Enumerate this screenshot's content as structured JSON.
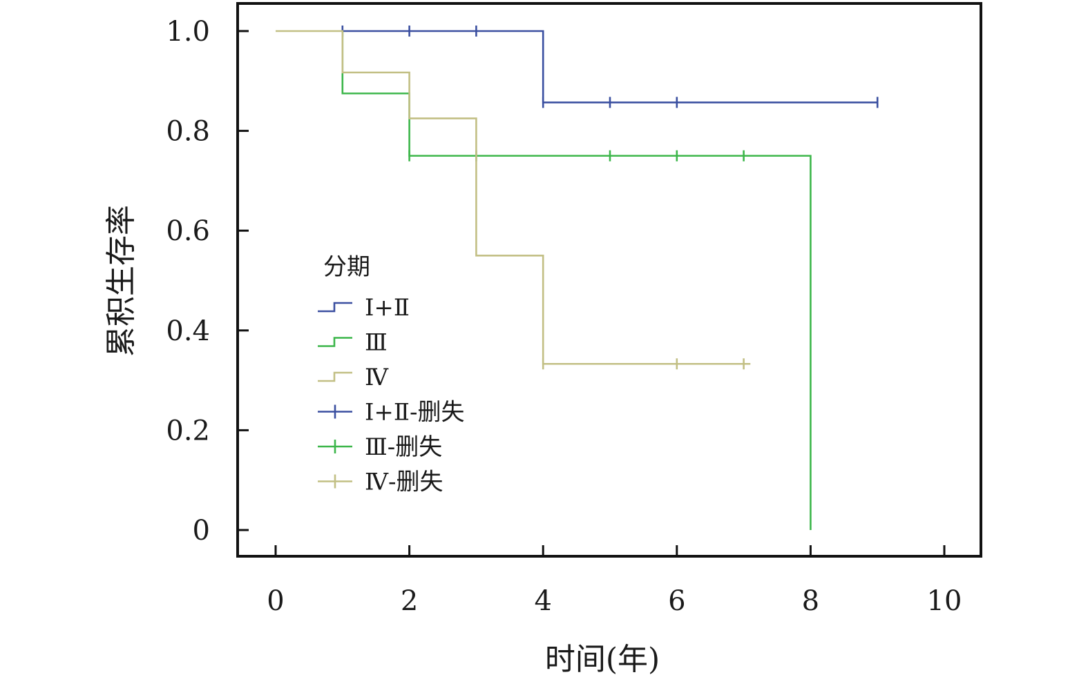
{
  "chart_data": {
    "type": "line",
    "subtype": "kaplan-meier",
    "title": "",
    "xlabel": "时间(年)",
    "ylabel": "累积生存率",
    "xlim": [
      0,
      10
    ],
    "ylim": [
      0,
      1.0
    ],
    "x_ticks": [
      0,
      2,
      4,
      6,
      8,
      10
    ],
    "y_ticks": [
      0,
      0.2,
      0.4,
      0.6,
      0.8,
      1.0
    ],
    "x_tick_labels": [
      "0",
      "2",
      "4",
      "6",
      "8",
      "10"
    ],
    "y_tick_labels": [
      "0",
      "0.2",
      "0.4",
      "0.6",
      "0.8",
      "1.0"
    ],
    "grid": false,
    "legend": {
      "title": "分期",
      "placement": "center-left",
      "entries": [
        {
          "label": "Ⅰ+Ⅱ",
          "kind": "step",
          "color": "#3a4fa0"
        },
        {
          "label": "Ⅲ",
          "kind": "step",
          "color": "#3cb64a"
        },
        {
          "label": "Ⅳ",
          "kind": "step",
          "color": "#c2bf84"
        },
        {
          "label": "Ⅰ+Ⅱ-删失",
          "kind": "censor",
          "color": "#3a4fa0"
        },
        {
          "label": "Ⅲ-删失",
          "kind": "censor",
          "color": "#3cb64a"
        },
        {
          "label": "Ⅳ-删失",
          "kind": "censor",
          "color": "#c2bf84"
        }
      ]
    },
    "series": [
      {
        "name": "Ⅰ+Ⅱ",
        "color": "#3a4fa0",
        "steps": [
          [
            1,
            1.0
          ],
          [
            4,
            0.857
          ],
          [
            9,
            0.857
          ]
        ],
        "censored": [
          [
            1,
            1.0
          ],
          [
            2,
            1.0
          ],
          [
            3,
            1.0
          ],
          [
            4,
            0.857
          ],
          [
            5,
            0.857
          ],
          [
            6,
            0.857
          ],
          [
            9,
            0.857
          ]
        ]
      },
      {
        "name": "Ⅲ",
        "color": "#3cb64a",
        "steps": [
          [
            1,
            1.0
          ],
          [
            1,
            0.875
          ],
          [
            2,
            0.75
          ],
          [
            8,
            0.0
          ]
        ],
        "censored": [
          [
            2,
            0.75
          ],
          [
            3,
            0.75
          ],
          [
            5,
            0.75
          ],
          [
            6,
            0.75
          ],
          [
            7,
            0.75
          ]
        ]
      },
      {
        "name": "Ⅳ",
        "color": "#c2bf84",
        "steps": [
          [
            0,
            1.0
          ],
          [
            1,
            0.917
          ],
          [
            2,
            0.825
          ],
          [
            3,
            0.55
          ],
          [
            4,
            0.333
          ],
          [
            7.1,
            0.333
          ]
        ],
        "censored": [
          [
            4,
            0.333
          ],
          [
            6,
            0.333
          ],
          [
            7,
            0.333
          ]
        ]
      }
    ]
  }
}
